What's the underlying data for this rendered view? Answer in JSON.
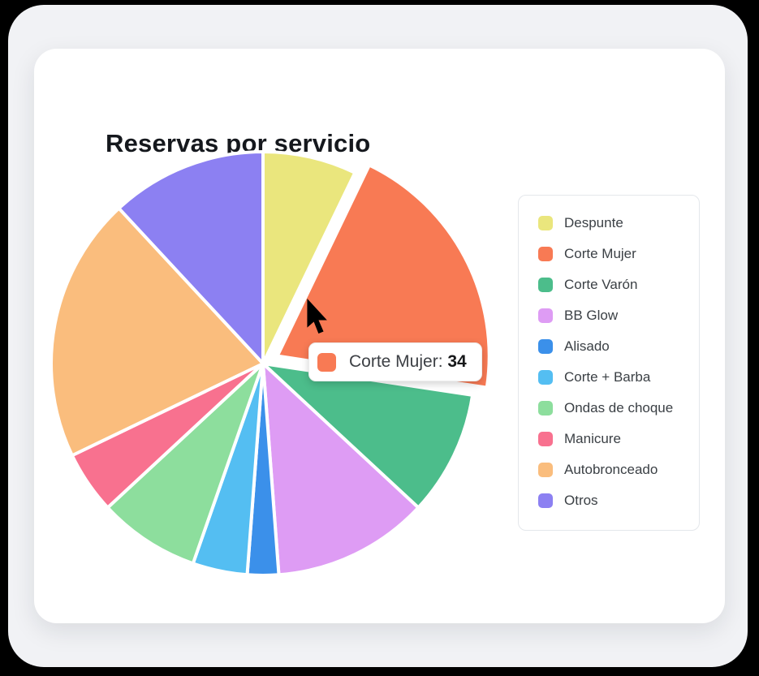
{
  "page": {
    "title": "Reservas por servicio"
  },
  "chart_data": {
    "type": "pie",
    "title": "Reservas por servicio",
    "categories": [
      "Despunte",
      "Corte Mujer",
      "Corte Varón",
      "BB Glow",
      "Alisado",
      "Corte + Barba",
      "Ondas de choque",
      "Manicure",
      "Autobronceado",
      "Otros"
    ],
    "values": [
      12,
      34,
      16,
      20,
      4,
      7,
      13,
      8,
      34,
      20
    ],
    "colors": [
      "#EAE67D",
      "#F87A54",
      "#4CBD8B",
      "#DE9CF4",
      "#3B90EA",
      "#54BEF2",
      "#8DDE9D",
      "#F8718F",
      "#FABD7D",
      "#8C80F2"
    ],
    "total": 168,
    "start_angle_deg": 0,
    "direction": "clockwise",
    "legend_position": "right",
    "grid": false,
    "exploded_label": "Corte Mujer",
    "hovered_label": "Corte Mujer",
    "hovered_value": 34
  },
  "tooltip": {
    "label": "Corte Mujer:",
    "value": "34",
    "color": "#F87A54"
  }
}
